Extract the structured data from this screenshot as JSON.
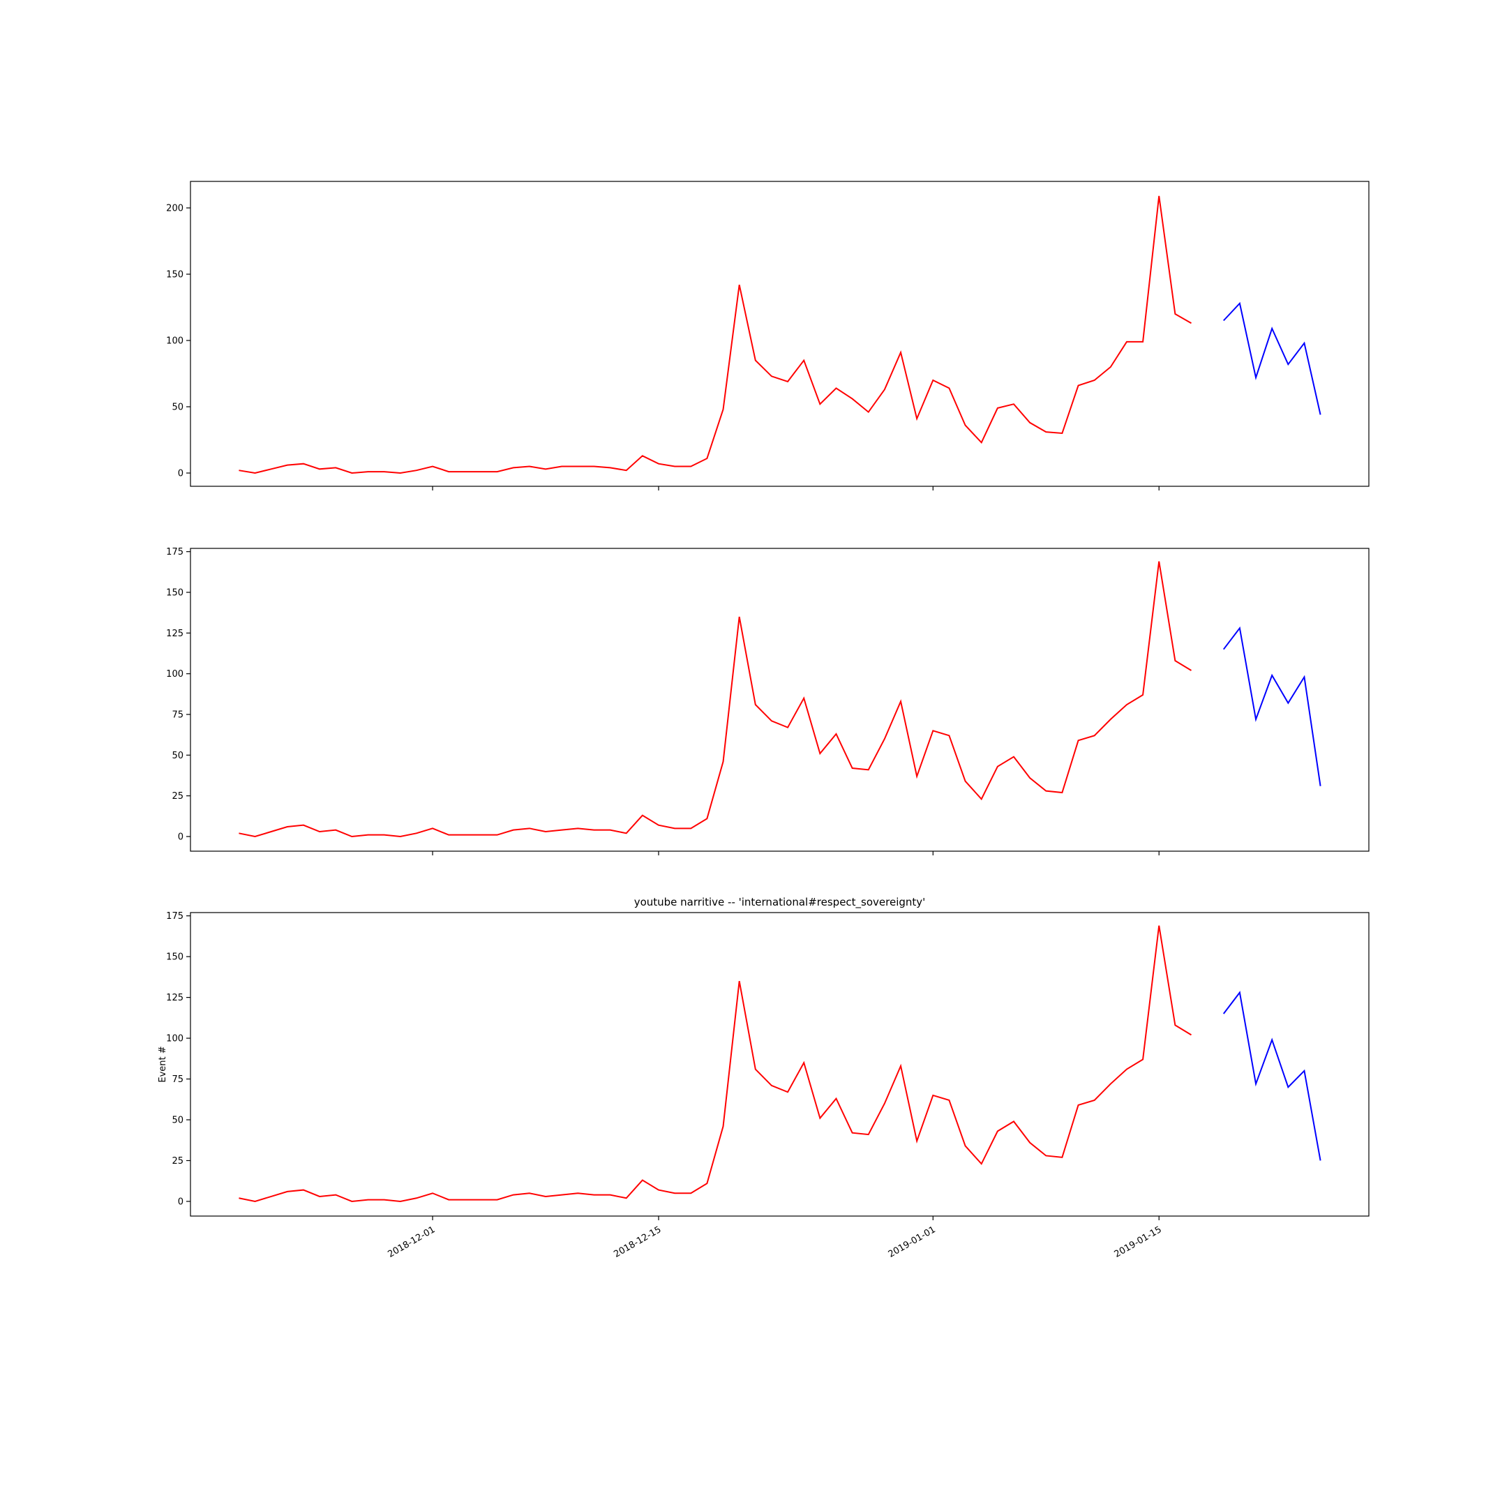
{
  "figure": {
    "background": "#ffffff",
    "colors": {
      "history": "#ff0000",
      "forecast": "#0000ff",
      "axes": "#000000"
    }
  },
  "chart_data": [
    {
      "type": "line",
      "title": "",
      "xlabel": "",
      "ylabel": "",
      "ylim": [
        -10,
        220
      ],
      "yticks": [
        0,
        50,
        100,
        150,
        200
      ],
      "xlim": [
        "2018-11-16",
        "2019-01-28"
      ],
      "xticks": [
        "2018-12-01",
        "2018-12-15",
        "2019-01-01",
        "2019-01-15"
      ],
      "show_xtick_labels": false,
      "grid": false,
      "series": [
        {
          "role": "history",
          "color": "#ff0000",
          "x_start": "2018-11-19",
          "values": [
            2,
            0,
            3,
            6,
            7,
            3,
            4,
            0,
            1,
            1,
            0,
            2,
            5,
            1,
            1,
            1,
            1,
            4,
            5,
            3,
            5,
            5,
            5,
            4,
            2,
            13,
            7,
            5,
            5,
            11,
            48,
            142,
            85,
            73,
            69,
            85,
            52,
            64,
            56,
            46,
            63,
            91,
            41,
            70,
            64,
            36,
            23,
            49,
            52,
            38,
            31,
            30,
            66,
            70,
            80,
            99,
            99,
            209,
            120,
            113
          ]
        },
        {
          "role": "forecast",
          "color": "#0000ff",
          "x_start": "2019-01-19",
          "values": [
            115,
            128,
            72,
            109,
            82,
            98,
            44
          ]
        }
      ]
    },
    {
      "type": "line",
      "title": "",
      "xlabel": "",
      "ylabel": "",
      "ylim": [
        -9,
        177
      ],
      "yticks": [
        0,
        25,
        50,
        75,
        100,
        125,
        150,
        175
      ],
      "xlim": [
        "2018-11-16",
        "2019-01-28"
      ],
      "xticks": [
        "2018-12-01",
        "2018-12-15",
        "2019-01-01",
        "2019-01-15"
      ],
      "show_xtick_labels": false,
      "grid": false,
      "series": [
        {
          "role": "history",
          "color": "#ff0000",
          "x_start": "2018-11-19",
          "values": [
            2,
            0,
            3,
            6,
            7,
            3,
            4,
            0,
            1,
            1,
            0,
            2,
            5,
            1,
            1,
            1,
            1,
            4,
            5,
            3,
            4,
            5,
            4,
            4,
            2,
            13,
            7,
            5,
            5,
            11,
            46,
            135,
            81,
            71,
            67,
            85,
            51,
            63,
            42,
            41,
            60,
            83,
            37,
            65,
            62,
            34,
            23,
            43,
            49,
            36,
            28,
            27,
            59,
            62,
            72,
            81,
            87,
            169,
            108,
            102
          ]
        },
        {
          "role": "forecast",
          "color": "#0000ff",
          "x_start": "2019-01-19",
          "values": [
            115,
            128,
            72,
            99,
            82,
            98,
            31
          ]
        }
      ]
    },
    {
      "type": "line",
      "title": "youtube narritive -- 'international#respect_sovereignty'",
      "xlabel": "",
      "ylabel": "Event #",
      "ylim": [
        -9,
        177
      ],
      "yticks": [
        0,
        25,
        50,
        75,
        100,
        125,
        150,
        175
      ],
      "xlim": [
        "2018-11-16",
        "2019-01-28"
      ],
      "xticks": [
        "2018-12-01",
        "2018-12-15",
        "2019-01-01",
        "2019-01-15"
      ],
      "show_xtick_labels": true,
      "grid": false,
      "series": [
        {
          "role": "history",
          "color": "#ff0000",
          "x_start": "2018-11-19",
          "values": [
            2,
            0,
            3,
            6,
            7,
            3,
            4,
            0,
            1,
            1,
            0,
            2,
            5,
            1,
            1,
            1,
            1,
            4,
            5,
            3,
            4,
            5,
            4,
            4,
            2,
            13,
            7,
            5,
            5,
            11,
            46,
            135,
            81,
            71,
            67,
            85,
            51,
            63,
            42,
            41,
            60,
            83,
            37,
            65,
            62,
            34,
            23,
            43,
            49,
            36,
            28,
            27,
            59,
            62,
            72,
            81,
            87,
            169,
            108,
            102
          ]
        },
        {
          "role": "forecast",
          "color": "#0000ff",
          "x_start": "2019-01-19",
          "values": [
            115,
            128,
            72,
            99,
            70,
            80,
            25
          ]
        }
      ]
    }
  ]
}
